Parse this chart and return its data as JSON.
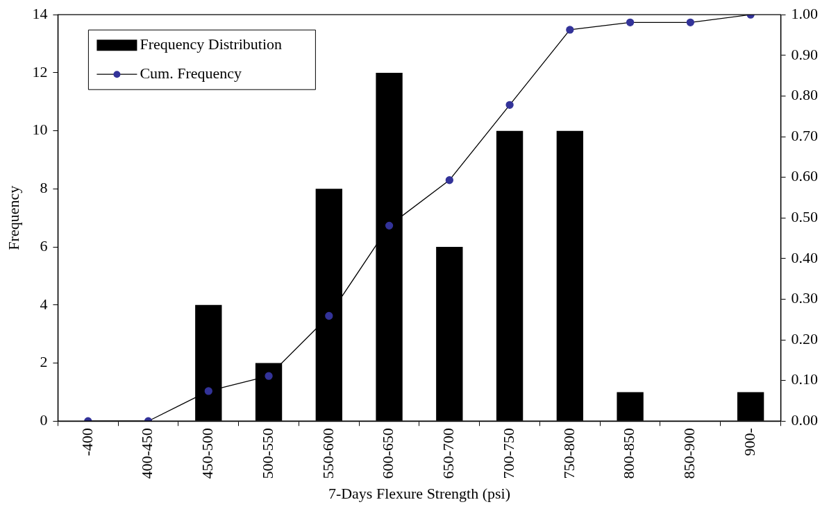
{
  "chart_data": {
    "type": "bar",
    "xlabel": "7-Days Flexure Strength (psi)",
    "ylabel": "Frequency",
    "categories": [
      "-400",
      "400-450",
      "450-500",
      "500-550",
      "550-600",
      "600-650",
      "650-700",
      "700-750",
      "750-800",
      "800-850",
      "850-900",
      "900-"
    ],
    "series": [
      {
        "name": "Frequency Distribution",
        "color": "#000000",
        "values": [
          0,
          0,
          4,
          2,
          8,
          12,
          6,
          10,
          10,
          1,
          0,
          1
        ]
      },
      {
        "name": "Cum. Frequency",
        "type": "line",
        "axis": "y2",
        "color": "#333399",
        "values": [
          0,
          0,
          0.074,
          0.111,
          0.259,
          0.481,
          0.593,
          0.778,
          0.963,
          0.981,
          0.981,
          1.0
        ]
      }
    ],
    "ylim": [
      0,
      14
    ],
    "yticks": [
      0,
      2,
      4,
      6,
      8,
      10,
      12,
      14
    ],
    "y2lim": [
      0,
      1
    ],
    "y2ticks": [
      {
        "value": 0,
        "label": "0.00"
      },
      {
        "value": 0.1,
        "label": "0.10"
      },
      {
        "value": 0.2,
        "label": "0.20"
      },
      {
        "value": 0.3,
        "label": "0.30"
      },
      {
        "value": 0.4,
        "label": "0.40"
      },
      {
        "value": 0.5,
        "label": "0.50"
      },
      {
        "value": 0.6,
        "label": "0.60"
      },
      {
        "value": 0.7,
        "label": "0.70"
      },
      {
        "value": 0.8,
        "label": "0.80"
      },
      {
        "value": 0.9,
        "label": "0.90"
      },
      {
        "value": 1,
        "label": "1.00"
      }
    ],
    "grid": false,
    "legend": "top left",
    "marker": "circle",
    "line_style": "solid"
  }
}
